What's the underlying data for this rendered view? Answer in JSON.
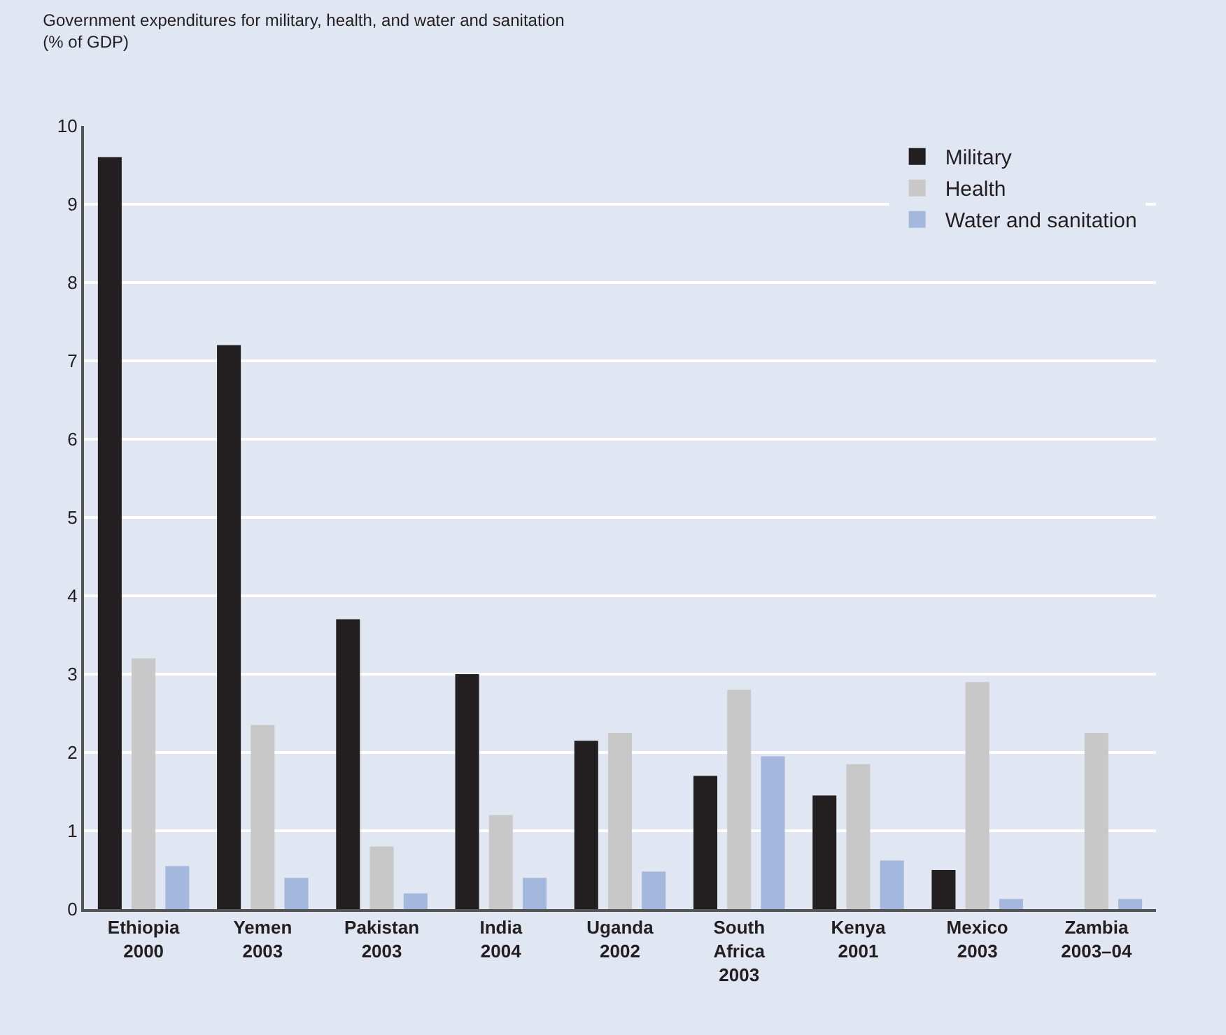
{
  "chart_data": {
    "type": "bar",
    "title": "Government expenditures for military, health, and water and sanitation",
    "subtitle": "(% of GDP)",
    "categories": [
      "Ethiopia\n2000",
      "Yemen\n2003",
      "Pakistan\n2003",
      "India\n2004",
      "Uganda\n2002",
      "South\nAfrica\n2003",
      "Kenya\n2001",
      "Mexico\n2003",
      "Zambia\n2003–04"
    ],
    "series": [
      {
        "name": "Military",
        "color": "#231f20",
        "values": [
          9.6,
          7.2,
          3.7,
          3.0,
          2.15,
          1.7,
          1.45,
          0.5,
          0
        ]
      },
      {
        "name": "Health",
        "color": "#c8c8c8",
        "values": [
          3.2,
          2.35,
          0.8,
          1.2,
          2.25,
          2.8,
          1.85,
          2.9,
          2.25
        ]
      },
      {
        "name": "Water and sanitation",
        "color": "#a3b8dc",
        "values": [
          0.55,
          0.4,
          0.2,
          0.4,
          0.48,
          1.95,
          0.62,
          0.13,
          0.13
        ]
      }
    ],
    "ylim": [
      0,
      10
    ],
    "yticks": [
      0,
      1,
      2,
      3,
      4,
      5,
      6,
      7,
      8,
      9,
      10
    ],
    "grid": "y",
    "legend": "top right"
  }
}
